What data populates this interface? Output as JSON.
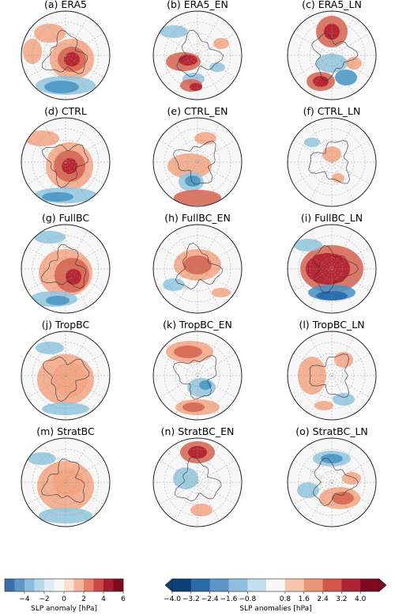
{
  "panels": [
    {
      "title": "(a) ERA5"
    },
    {
      "title": "(b) ERA5_EN"
    },
    {
      "title": "(c) ERA5_LN"
    },
    {
      "title": "(d) CTRL"
    },
    {
      "title": "(e) CTRL_EN"
    },
    {
      "title": "(f) CTRL_LN"
    },
    {
      "title": "(g) FullBC"
    },
    {
      "title": "(h) FullBC_EN"
    },
    {
      "title": "(i) FullBC_LN"
    },
    {
      "title": "(j) TropBC"
    },
    {
      "title": "(k) TropBC_EN"
    },
    {
      "title": "(l) TropBC_LN"
    },
    {
      "title": "(m) StratBC"
    },
    {
      "title": "(n) StratBC_EN"
    },
    {
      "title": "(o) StratBC_LN"
    }
  ],
  "colorbar_left": {
    "label": "SLP anomaly [hPa]",
    "ticks": [
      "−4",
      "−2",
      "0",
      "2",
      "4",
      "6"
    ],
    "colors": [
      "#3a6fae",
      "#5e97c7",
      "#8bbcdb",
      "#b9d8ea",
      "#dcebf4",
      "#f7f7f7",
      "#fde0d0",
      "#f6b49a",
      "#e5806a",
      "#cc4a45",
      "#a81b2e",
      "#7a0c1e"
    ]
  },
  "colorbar_right": {
    "label": "SLP anomalies [hPa]",
    "ticks": [
      "−4.0",
      "−3.2",
      "−2.4",
      "−1.6",
      "−0.8",
      "0.8",
      "1.6",
      "2.4",
      "3.2",
      "4.0"
    ],
    "colors": [
      "#0f3f78",
      "#2b6aa8",
      "#5a95c6",
      "#8fbfdc",
      "#c3deed",
      "#f7f7f7",
      "#f7c6ae",
      "#ea9478",
      "#d4574b",
      "#ae2333",
      "#7f0a1f"
    ]
  }
}
